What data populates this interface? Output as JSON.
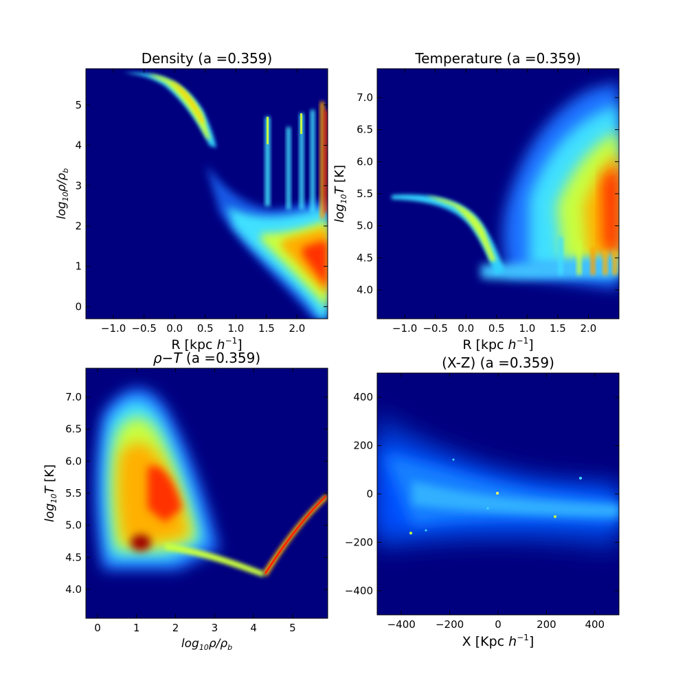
{
  "chart_data": [
    {
      "type": "heatmap",
      "title": "Density (a =0.359)",
      "xlabel_pre": "R [kpc ",
      "xlabel_math": "h",
      "xlabel_sup": "−1",
      "xlabel_post": "]",
      "ylabel": "log10ρ/ρb",
      "ylabel_parts": [
        "log",
        "10",
        "ρ/ρ",
        "b"
      ],
      "xlim": [
        -1.45,
        2.5
      ],
      "ylim": [
        -0.3,
        5.9
      ],
      "xticks": [
        "−1.0",
        "−0.5",
        "0.0",
        "0.5",
        "1.0",
        "1.5",
        "2.0"
      ],
      "xtick_values": [
        -1.0,
        -0.5,
        0.0,
        0.5,
        1.0,
        1.5,
        2.0
      ],
      "yticks": [
        "0",
        "1",
        "2",
        "3",
        "4",
        "5"
      ],
      "ytick_values": [
        0,
        1,
        2,
        3,
        4,
        5
      ],
      "colormap": "jet",
      "background": "#00007f"
    },
    {
      "type": "heatmap",
      "title": "Temperature (a =0.359)",
      "xlabel_pre": "R [kpc ",
      "xlabel_math": "h",
      "xlabel_sup": "−1",
      "xlabel_post": "]",
      "ylabel_parts": [
        "log",
        "10",
        "T",
        " [K]"
      ],
      "xlim": [
        -1.45,
        2.5
      ],
      "ylim": [
        3.55,
        7.45
      ],
      "xticks": [
        "−1.0",
        "−0.5",
        "0.0",
        "0.5",
        "1.0",
        "1.5",
        "2.0"
      ],
      "xtick_values": [
        -1.0,
        -0.5,
        0.0,
        0.5,
        1.0,
        1.5,
        2.0
      ],
      "yticks": [
        "4.0",
        "4.5",
        "5.0",
        "5.5",
        "6.0",
        "6.5",
        "7.0"
      ],
      "ytick_values": [
        4.0,
        4.5,
        5.0,
        5.5,
        6.0,
        6.5,
        7.0
      ],
      "colormap": "jet",
      "background": "#00007f"
    },
    {
      "type": "heatmap",
      "title_math": "ρ−T",
      "title_post": " (a =0.359)",
      "xlabel_parts": [
        "log",
        "10",
        "ρ/ρ",
        "b"
      ],
      "ylabel_parts": [
        "log",
        "10",
        "T",
        " [K]"
      ],
      "xlim": [
        -0.3,
        5.9
      ],
      "ylim": [
        3.55,
        7.45
      ],
      "xticks": [
        "0",
        "1",
        "2",
        "3",
        "4",
        "5"
      ],
      "xtick_values": [
        0,
        1,
        2,
        3,
        4,
        5
      ],
      "yticks": [
        "4.0",
        "4.5",
        "5.0",
        "5.5",
        "6.0",
        "6.5",
        "7.0"
      ],
      "ytick_values": [
        4.0,
        4.5,
        5.0,
        5.5,
        6.0,
        6.5,
        7.0
      ],
      "colormap": "jet",
      "background": "#00007f"
    },
    {
      "type": "heatmap",
      "title": "(X-Z) (a =0.359)",
      "xlabel_pre": "X [Kpc ",
      "xlabel_math": "h",
      "xlabel_sup": "−1",
      "xlabel_post": "]",
      "xlim": [
        -500,
        500
      ],
      "ylim": [
        -500,
        500
      ],
      "xticks": [
        "−400",
        "−200",
        "0",
        "200",
        "400"
      ],
      "xtick_values": [
        -400,
        -200,
        0,
        200,
        400
      ],
      "yticks": [
        "−400",
        "−200",
        "0",
        "200",
        "400"
      ],
      "ytick_values": [
        -400,
        -200,
        0,
        200,
        400
      ],
      "colormap": "jet",
      "background": "#00007f"
    }
  ]
}
